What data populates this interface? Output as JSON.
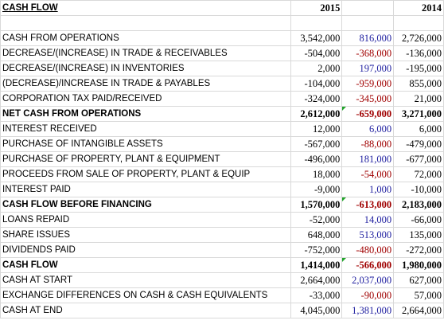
{
  "header": {
    "title": "CASH FLOW",
    "y2015": "2015",
    "y2014": "2014"
  },
  "rows": [
    {
      "label": "CASH FROM OPERATIONS",
      "v2015": "3,542,000",
      "diff": "816,000",
      "v2014": "2,726,000",
      "sign": "pos",
      "bold": false
    },
    {
      "label": "DECREASE/(INCREASE) IN TRADE & RECEIVABLES",
      "v2015": "-504,000",
      "diff": "-368,000",
      "v2014": "-136,000",
      "sign": "neg",
      "bold": false
    },
    {
      "label": "DECREASE/(INCREASE) IN INVENTORIES",
      "v2015": "2,000",
      "diff": "197,000",
      "v2014": "-195,000",
      "sign": "pos",
      "bold": false
    },
    {
      "label": "(DECREASE)/INCREASE IN TRADE & PAYABLES",
      "v2015": "-104,000",
      "diff": "-959,000",
      "v2014": "855,000",
      "sign": "neg",
      "bold": false
    },
    {
      "label": "CORPORATION TAX PAID/RECEIVED",
      "v2015": "-324,000",
      "diff": "-345,000",
      "v2014": "21,000",
      "sign": "neg",
      "bold": false
    },
    {
      "label": "NET CASH FROM OPERATIONS",
      "v2015": "2,612,000",
      "diff": "-659,000",
      "v2014": "3,271,000",
      "sign": "neg",
      "bold": true
    },
    {
      "label": "INTEREST RECEIVED",
      "v2015": "12,000",
      "diff": "6,000",
      "v2014": "6,000",
      "sign": "pos",
      "bold": false
    },
    {
      "label": "PURCHASE OF INTANGIBLE ASSETS",
      "v2015": "-567,000",
      "diff": "-88,000",
      "v2014": "-479,000",
      "sign": "neg",
      "bold": false
    },
    {
      "label": "PURCHASE OF PROPERTY, PLANT & EQUIPMENT",
      "v2015": "-496,000",
      "diff": "181,000",
      "v2014": "-677,000",
      "sign": "pos",
      "bold": false
    },
    {
      "label": "PROCEEDS FROM SALE OF PROPERTY, PLANT & EQUIP",
      "v2015": "18,000",
      "diff": "-54,000",
      "v2014": "72,000",
      "sign": "neg",
      "bold": false
    },
    {
      "label": "INTEREST PAID",
      "v2015": "-9,000",
      "diff": "1,000",
      "v2014": "-10,000",
      "sign": "pos",
      "bold": false
    },
    {
      "label": "CASH FLOW BEFORE FINANCING",
      "v2015": "1,570,000",
      "diff": "-613,000",
      "v2014": "2,183,000",
      "sign": "neg",
      "bold": true
    },
    {
      "label": "LOANS REPAID",
      "v2015": "-52,000",
      "diff": "14,000",
      "v2014": "-66,000",
      "sign": "pos",
      "bold": false
    },
    {
      "label": "SHARE ISSUES",
      "v2015": "648,000",
      "diff": "513,000",
      "v2014": "135,000",
      "sign": "pos",
      "bold": false
    },
    {
      "label": "DIVIDENDS PAID",
      "v2015": "-752,000",
      "diff": "-480,000",
      "v2014": "-272,000",
      "sign": "neg",
      "bold": false
    },
    {
      "label": "CASH FLOW",
      "v2015": "1,414,000",
      "diff": "-566,000",
      "v2014": "1,980,000",
      "sign": "neg",
      "bold": true
    },
    {
      "label": "CASH AT START",
      "v2015": "2,664,000",
      "diff": "2,037,000",
      "v2014": "627,000",
      "sign": "pos",
      "bold": false
    },
    {
      "label": "EXCHANGE DIFFERENCES ON CASH & CASH EQUIVALENTS",
      "v2015": "-33,000",
      "diff": "-90,000",
      "v2014": "57,000",
      "sign": "neg",
      "bold": false
    },
    {
      "label": "CASH AT END",
      "v2015": "4,045,000",
      "diff": "1,381,000",
      "v2014": "2,664,000",
      "sign": "pos",
      "bold": false
    }
  ],
  "colors": {
    "positive_change": "#1f1fa0",
    "negative_change": "#a00000",
    "formula_flag": "#21a32a",
    "gridline": "#d9d9d9"
  },
  "icons": {
    "formula_flag": "green-triangle-indicator"
  }
}
